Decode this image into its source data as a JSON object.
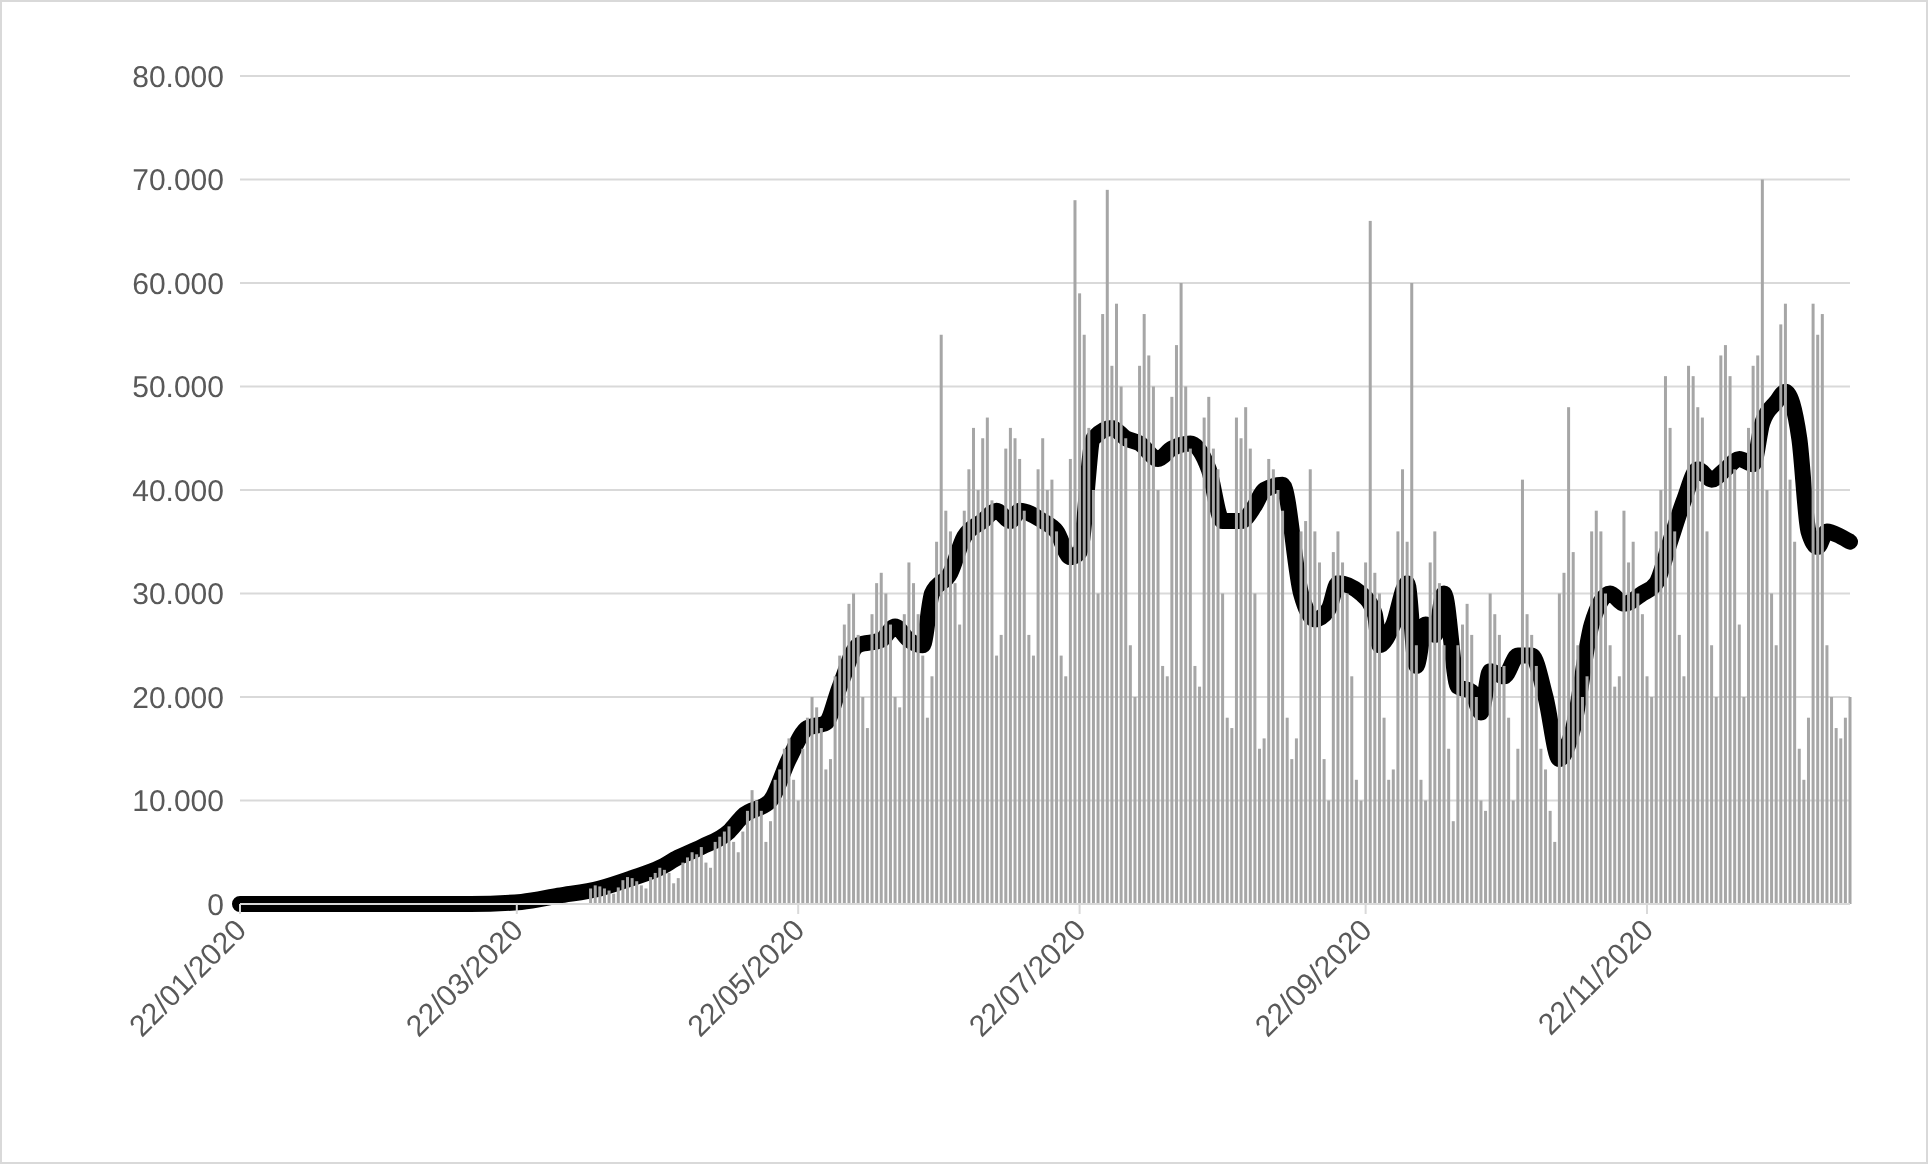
{
  "chart_data": {
    "type": "bar",
    "x": [
      "2020-04-07",
      "2020-04-08",
      "2020-04-09",
      "2020-04-10",
      "2020-04-11",
      "2020-04-12",
      "2020-04-13",
      "2020-04-14",
      "2020-04-15",
      "2020-04-16",
      "2020-04-17",
      "2020-04-18",
      "2020-04-19",
      "2020-04-20",
      "2020-04-21",
      "2020-04-22",
      "2020-04-23",
      "2020-04-24",
      "2020-04-25",
      "2020-04-26",
      "2020-04-27",
      "2020-04-28",
      "2020-04-29",
      "2020-04-30",
      "2020-05-01",
      "2020-05-02",
      "2020-05-03",
      "2020-05-04",
      "2020-05-05",
      "2020-05-06",
      "2020-05-07",
      "2020-05-08",
      "2020-05-09",
      "2020-05-10",
      "2020-05-11",
      "2020-05-12",
      "2020-05-13",
      "2020-05-14",
      "2020-05-15",
      "2020-05-16",
      "2020-05-17",
      "2020-05-18",
      "2020-05-19",
      "2020-05-20",
      "2020-05-21",
      "2020-05-22",
      "2020-05-23",
      "2020-05-24",
      "2020-05-25",
      "2020-05-26",
      "2020-05-27",
      "2020-05-28",
      "2020-05-29",
      "2020-05-30",
      "2020-05-31",
      "2020-06-01",
      "2020-06-02",
      "2020-06-03",
      "2020-06-04",
      "2020-06-05",
      "2020-06-06",
      "2020-06-07",
      "2020-06-08",
      "2020-06-09",
      "2020-06-10",
      "2020-06-11",
      "2020-06-12",
      "2020-06-13",
      "2020-06-14",
      "2020-06-15",
      "2020-06-16",
      "2020-06-17",
      "2020-06-18",
      "2020-06-19",
      "2020-06-20",
      "2020-06-21",
      "2020-06-22",
      "2020-06-23",
      "2020-06-24",
      "2020-06-25",
      "2020-06-26",
      "2020-06-27",
      "2020-06-28",
      "2020-06-29",
      "2020-06-30",
      "2020-07-01",
      "2020-07-02",
      "2020-07-03",
      "2020-07-04",
      "2020-07-05",
      "2020-07-06",
      "2020-07-07",
      "2020-07-08",
      "2020-07-09",
      "2020-07-10",
      "2020-07-11",
      "2020-07-12",
      "2020-07-13",
      "2020-07-14",
      "2020-07-15",
      "2020-07-16",
      "2020-07-17",
      "2020-07-18",
      "2020-07-19",
      "2020-07-20",
      "2020-07-21",
      "2020-07-22",
      "2020-07-23",
      "2020-07-24",
      "2020-07-25",
      "2020-07-26",
      "2020-07-27",
      "2020-07-28",
      "2020-07-29",
      "2020-07-30",
      "2020-07-31",
      "2020-08-01",
      "2020-08-02",
      "2020-08-03",
      "2020-08-04",
      "2020-08-05",
      "2020-08-06",
      "2020-08-07",
      "2020-08-08",
      "2020-08-09",
      "2020-08-10",
      "2020-08-11",
      "2020-08-12",
      "2020-08-13",
      "2020-08-14",
      "2020-08-15",
      "2020-08-16",
      "2020-08-17",
      "2020-08-18",
      "2020-08-19",
      "2020-08-20",
      "2020-08-21",
      "2020-08-22",
      "2020-08-23",
      "2020-08-24",
      "2020-08-25",
      "2020-08-26",
      "2020-08-27",
      "2020-08-28",
      "2020-08-29",
      "2020-08-30",
      "2020-08-31",
      "2020-09-01",
      "2020-09-02",
      "2020-09-03",
      "2020-09-04",
      "2020-09-05",
      "2020-09-06",
      "2020-09-07",
      "2020-09-08",
      "2020-09-09",
      "2020-09-10",
      "2020-09-11",
      "2020-09-12",
      "2020-09-13",
      "2020-09-14",
      "2020-09-15",
      "2020-09-16",
      "2020-09-17",
      "2020-09-18",
      "2020-09-19",
      "2020-09-20",
      "2020-09-21",
      "2020-09-22",
      "2020-09-23",
      "2020-09-24",
      "2020-09-25",
      "2020-09-26",
      "2020-09-27",
      "2020-09-28",
      "2020-09-29",
      "2020-09-30",
      "2020-10-01",
      "2020-10-02",
      "2020-10-03",
      "2020-10-04",
      "2020-10-05",
      "2020-10-06",
      "2020-10-07",
      "2020-10-08",
      "2020-10-09",
      "2020-10-10",
      "2020-10-11",
      "2020-10-12",
      "2020-10-13",
      "2020-10-14",
      "2020-10-15",
      "2020-10-16",
      "2020-10-17",
      "2020-10-18",
      "2020-10-19",
      "2020-10-20",
      "2020-10-21",
      "2020-10-22",
      "2020-10-23",
      "2020-10-24",
      "2020-10-25",
      "2020-10-26",
      "2020-10-27",
      "2020-10-28",
      "2020-10-29",
      "2020-10-30",
      "2020-10-31",
      "2020-11-01",
      "2020-11-02",
      "2020-11-03",
      "2020-11-04",
      "2020-11-05",
      "2020-11-06",
      "2020-11-07",
      "2020-11-08",
      "2020-11-09",
      "2020-11-10",
      "2020-11-11",
      "2020-11-12",
      "2020-11-13",
      "2020-11-14",
      "2020-11-15",
      "2020-11-16",
      "2020-11-17",
      "2020-11-18",
      "2020-11-19",
      "2020-11-20",
      "2020-11-21",
      "2020-11-22",
      "2020-11-23",
      "2020-11-24",
      "2020-11-25",
      "2020-11-26",
      "2020-11-27",
      "2020-11-28",
      "2020-11-29",
      "2020-11-30",
      "2020-12-01",
      "2020-12-02",
      "2020-12-03",
      "2020-12-04",
      "2020-12-05",
      "2020-12-06",
      "2020-12-07",
      "2020-12-08",
      "2020-12-09",
      "2020-12-10",
      "2020-12-11",
      "2020-12-12",
      "2020-12-13",
      "2020-12-14",
      "2020-12-15",
      "2020-12-16",
      "2020-12-17",
      "2020-12-18",
      "2020-12-19",
      "2020-12-20",
      "2020-12-21",
      "2020-12-22",
      "2020-12-23",
      "2020-12-24",
      "2020-12-25",
      "2020-12-26",
      "2020-12-27",
      "2020-12-28",
      "2020-12-29",
      "2020-12-30",
      "2020-12-31",
      "2021-01-01",
      "2021-01-02",
      "2021-01-03",
      "2021-01-04",
      "2021-01-05"
    ],
    "series": [
      {
        "color": "#a6a6a6",
        "values": [
          1500,
          1800,
          1700,
          1500,
          1300,
          1000,
          1600,
          2300,
          2600,
          2500,
          2200,
          1800,
          1500,
          2600,
          3000,
          3500,
          3300,
          3000,
          2000,
          2500,
          4000,
          4500,
          5000,
          4800,
          5500,
          4000,
          3500,
          6000,
          6500,
          7000,
          7500,
          6000,
          5000,
          7000,
          9000,
          11000,
          10000,
          9000,
          6000,
          8000,
          12000,
          13000,
          15000,
          16000,
          12000,
          10000,
          15000,
          18000,
          20000,
          19000,
          17000,
          13000,
          14000,
          22000,
          24000,
          27000,
          29000,
          30000,
          26000,
          20000,
          17000,
          28000,
          31000,
          32000,
          30000,
          27000,
          20000,
          19000,
          28000,
          33000,
          31000,
          28000,
          24000,
          18000,
          22000,
          35000,
          55000,
          38000,
          36000,
          31000,
          27000,
          38000,
          42000,
          46000,
          40000,
          45000,
          47000,
          39000,
          24000,
          26000,
          44000,
          46000,
          45000,
          43000,
          38000,
          26000,
          24000,
          42000,
          45000,
          40000,
          41000,
          36000,
          24000,
          22000,
          43000,
          68000,
          59000,
          55000,
          46000,
          40000,
          30000,
          57000,
          69000,
          52000,
          58000,
          50000,
          45000,
          25000,
          20000,
          52000,
          57000,
          53000,
          50000,
          40000,
          23000,
          22000,
          49000,
          54000,
          60000,
          50000,
          44000,
          23000,
          21000,
          47000,
          49000,
          44000,
          42000,
          30000,
          18000,
          17000,
          47000,
          45000,
          48000,
          44000,
          30000,
          15000,
          16000,
          43000,
          42000,
          40000,
          38000,
          18000,
          14000,
          16000,
          36000,
          37000,
          42000,
          36000,
          33000,
          14000,
          10000,
          34000,
          36000,
          33000,
          30000,
          22000,
          12000,
          10000,
          33000,
          66000,
          32000,
          30000,
          18000,
          12000,
          13000,
          36000,
          42000,
          35000,
          60000,
          25000,
          12000,
          10000,
          33000,
          36000,
          31000,
          25000,
          15000,
          8000,
          25000,
          27000,
          29000,
          26000,
          20000,
          10000,
          9000,
          30000,
          28000,
          26000,
          23000,
          18000,
          10000,
          15000,
          41000,
          28000,
          26000,
          23000,
          15000,
          13000,
          9000,
          6000,
          30000,
          32000,
          48000,
          34000,
          25000,
          20000,
          22000,
          36000,
          38000,
          36000,
          30000,
          25000,
          21000,
          22000,
          38000,
          33000,
          35000,
          30000,
          28000,
          22000,
          20000,
          36000,
          40000,
          51000,
          46000,
          36000,
          26000,
          22000,
          52000,
          51000,
          48000,
          47000,
          36000,
          25000,
          20000,
          53000,
          54000,
          51000,
          42000,
          27000,
          20000,
          46000,
          52000,
          53000,
          70000,
          40000,
          30000,
          25000,
          56000,
          58000,
          41000,
          35000,
          15000,
          12000,
          18000,
          58000,
          55000,
          57000,
          25000,
          20000,
          17000,
          16000,
          18000,
          20000
        ]
      },
      {
        "type": "line",
        "color": "#000000",
        "x": [
          "2020-01-22",
          "2020-03-12",
          "2020-03-23",
          "2020-03-31",
          "2020-04-09",
          "2020-04-16",
          "2020-04-22",
          "2020-04-26",
          "2020-05-01",
          "2020-05-07",
          "2020-05-10",
          "2020-05-16",
          "2020-05-20",
          "2020-05-24",
          "2020-05-28",
          "2020-05-31",
          "2020-06-04",
          "2020-06-09",
          "2020-06-12",
          "2020-06-15",
          "2020-06-18",
          "2020-06-20",
          "2020-06-24",
          "2020-06-27",
          "2020-07-01",
          "2020-07-04",
          "2020-07-07",
          "2020-07-09",
          "2020-07-14",
          "2020-07-17",
          "2020-07-20",
          "2020-07-22",
          "2020-07-25",
          "2020-07-29",
          "2020-08-01",
          "2020-08-04",
          "2020-08-08",
          "2020-08-11",
          "2020-08-15",
          "2020-08-19",
          "2020-08-22",
          "2020-08-26",
          "2020-08-29",
          "2020-08-31",
          "2020-09-04",
          "2020-09-08",
          "2020-09-11",
          "2020-09-14",
          "2020-09-16",
          "2020-09-21",
          "2020-09-24",
          "2020-09-25",
          "2020-09-28",
          "2020-10-01",
          "2020-10-03",
          "2020-10-05",
          "2020-10-07",
          "2020-10-09",
          "2020-10-12",
          "2020-10-15",
          "2020-10-17",
          "2020-10-19",
          "2020-10-22",
          "2020-10-25",
          "2020-10-28",
          "2020-10-31",
          "2020-11-03",
          "2020-11-06",
          "2020-11-10",
          "2020-11-14",
          "2020-11-17",
          "2020-11-21",
          "2020-11-24",
          "2020-11-27",
          "2020-11-30",
          "2020-12-03",
          "2020-12-06",
          "2020-12-09",
          "2020-12-12",
          "2020-12-15",
          "2020-12-17",
          "2020-12-20",
          "2020-12-22",
          "2020-12-25",
          "2020-12-27",
          "2020-12-29",
          "2020-12-31",
          "2021-01-03",
          "2021-01-05"
        ],
        "values": [
          0,
          0,
          200,
          800,
          1500,
          2500,
          3500,
          4500,
          5500,
          7000,
          8500,
          10000,
          14000,
          17000,
          17500,
          21000,
          25000,
          25500,
          26800,
          25500,
          25000,
          30000,
          32000,
          35500,
          37000,
          38000,
          37000,
          38000,
          37000,
          36000,
          33500,
          34000,
          45000,
          46000,
          45000,
          44500,
          43000,
          44000,
          44500,
          42000,
          37000,
          37000,
          38500,
          40000,
          40500,
          30000,
          27500,
          28500,
          31000,
          30000,
          28000,
          25000,
          27000,
          31000,
          23000,
          27000,
          26000,
          30000,
          21000,
          20500,
          18500,
          22500,
          22000,
          24000,
          24000,
          20000,
          14000,
          17000,
          27000,
          30000,
          29000,
          30000,
          31000,
          35000,
          39000,
          42000,
          41000,
          42000,
          43000,
          42500,
          46500,
          48500,
          49500,
          45000,
          36000,
          34500,
          36000,
          35500,
          35000
        ]
      }
    ],
    "xlim": [
      "2020-01-22",
      "2021-01-05"
    ],
    "xticks": [
      {
        "value": "2020-01-22",
        "label": "22/01/2020"
      },
      {
        "value": "2020-03-22",
        "label": "22/03/2020"
      },
      {
        "value": "2020-05-22",
        "label": "22/05/2020"
      },
      {
        "value": "2020-07-22",
        "label": "22/07/2020"
      },
      {
        "value": "2020-09-22",
        "label": "22/09/2020"
      },
      {
        "value": "2020-11-22",
        "label": "22/11/2020"
      }
    ],
    "ylim": [
      0,
      80000
    ],
    "yticks": [
      0,
      {
        "value": 10000,
        "label": "10.000"
      },
      {
        "value": 20000,
        "label": "20.000"
      },
      {
        "value": 30000,
        "label": "30.000"
      },
      {
        "value": 40000,
        "label": "40.000"
      },
      {
        "value": 50000,
        "label": "50.000"
      },
      {
        "value": 60000,
        "label": "60.000"
      },
      {
        "value": 70000,
        "label": "70.000"
      },
      {
        "value": 80000,
        "label": "80.000"
      }
    ],
    "grid": "y"
  }
}
